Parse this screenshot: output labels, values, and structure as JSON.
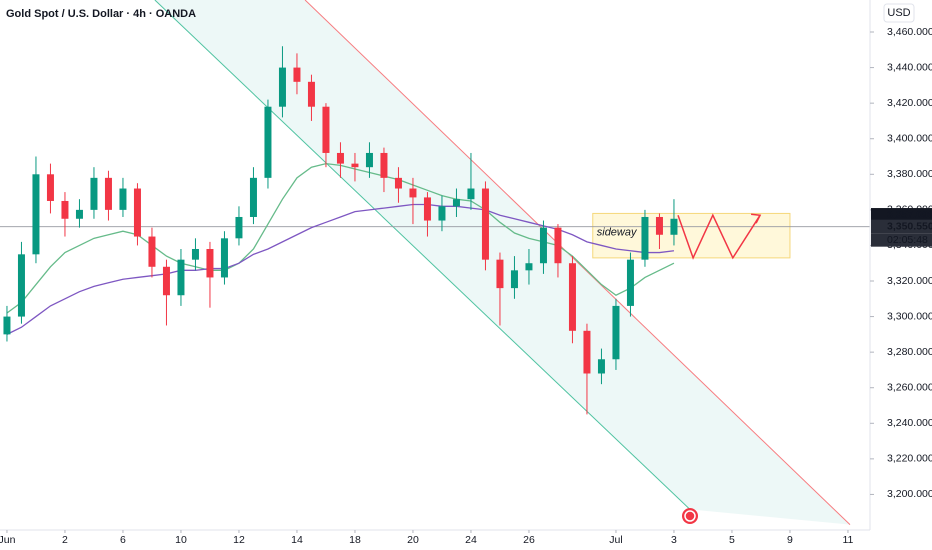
{
  "chart_data": {
    "type": "candlestick",
    "title": "Gold Spot / U.S. Dollar · 4h · OANDA",
    "currency": "USD",
    "xlim": [
      -0.24,
      29.76
    ],
    "xticks": [
      {
        "value": 0,
        "label": "Jun"
      },
      2,
      {
        "value": 4,
        "label": "6"
      },
      {
        "value": 6,
        "label": "10"
      },
      {
        "value": 8,
        "label": "12"
      },
      {
        "value": 10,
        "label": "14"
      },
      {
        "value": 12,
        "label": "18"
      },
      {
        "value": 14,
        "label": "20"
      },
      {
        "value": 16,
        "label": "24"
      },
      {
        "value": 18,
        "label": "26"
      },
      {
        "value": 21,
        "label": "Jul"
      },
      {
        "value": 23,
        "label": "3"
      },
      {
        "value": 25,
        "label": "5"
      },
      {
        "value": 27,
        "label": "9"
      },
      {
        "value": 29,
        "label": "11"
      }
    ],
    "ylim": [
      3180,
      3478
    ],
    "yticks": [
      {
        "value": 3460,
        "label": "3,460.000"
      },
      {
        "value": 3440,
        "label": "3,440.000"
      },
      {
        "value": 3420,
        "label": "3,420.000"
      },
      {
        "value": 3400,
        "label": "3,400.000"
      },
      {
        "value": 3380,
        "label": "3,380.000"
      },
      {
        "value": 3360,
        "label": "3,360.000"
      },
      {
        "value": 3340,
        "label": "3,340.000"
      },
      {
        "value": 3320,
        "label": "3,320.000"
      },
      {
        "value": 3300,
        "label": "3,300.000"
      },
      {
        "value": 3280,
        "label": "3,280.000"
      },
      {
        "value": 3260,
        "label": "3,260.000"
      },
      {
        "value": 3240,
        "label": "3,240.000"
      },
      {
        "value": 3220,
        "label": "3,220.000"
      },
      {
        "value": 3200,
        "label": "3,200.000"
      }
    ],
    "up_color": "#089981",
    "down_color": "#f23645",
    "x": [
      0,
      0.5,
      1,
      1.5,
      2,
      2.5,
      3,
      3.5,
      4,
      4.5,
      5,
      5.5,
      6,
      6.5,
      7,
      7.5,
      8,
      8.5,
      9,
      9.5,
      10,
      10.5,
      11,
      11.5,
      12,
      12.5,
      13,
      13.5,
      14,
      14.5,
      15,
      15.5,
      16,
      16.5,
      17,
      17.5,
      18,
      18.5,
      19,
      19.5,
      20,
      20.5,
      21,
      21.5,
      22,
      22.5,
      23
    ],
    "open": [
      3290,
      3300,
      3335,
      3380,
      3365,
      3355,
      3360,
      3378,
      3360,
      3372,
      3345,
      3328,
      3312,
      3332,
      3338,
      3322,
      3344,
      3356,
      3378,
      3418,
      3440,
      3432,
      3418,
      3392,
      3386,
      3384,
      3392,
      3378,
      3372,
      3367,
      3354,
      3362,
      3366,
      3372,
      3332,
      3316,
      3326,
      3330,
      3350,
      3330,
      3292,
      3268,
      3276,
      3306,
      3332,
      3356,
      3346
    ],
    "high": [
      3306,
      3342,
      3390,
      3386,
      3370,
      3366,
      3384,
      3382,
      3378,
      3375,
      3350,
      3332,
      3338,
      3344,
      3342,
      3348,
      3362,
      3384,
      3422,
      3452,
      3448,
      3436,
      3420,
      3398,
      3392,
      3398,
      3395,
      3384,
      3378,
      3370,
      3368,
      3372,
      3392,
      3376,
      3336,
      3334,
      3338,
      3354,
      3352,
      3334,
      3296,
      3282,
      3310,
      3336,
      3360,
      3358,
      3366
    ],
    "low": [
      3286,
      3296,
      3330,
      3358,
      3345,
      3350,
      3355,
      3354,
      3356,
      3340,
      3322,
      3295,
      3306,
      3326,
      3305,
      3318,
      3340,
      3352,
      3372,
      3412,
      3425,
      3410,
      3384,
      3378,
      3376,
      3378,
      3370,
      3364,
      3352,
      3345,
      3348,
      3356,
      3360,
      3326,
      3295,
      3310,
      3318,
      3324,
      3322,
      3285,
      3245,
      3262,
      3270,
      3300,
      3328,
      3338,
      3340
    ],
    "close": [
      3300,
      3335,
      3380,
      3365,
      3355,
      3360,
      3378,
      3360,
      3372,
      3345,
      3328,
      3312,
      3332,
      3338,
      3322,
      3344,
      3356,
      3378,
      3418,
      3440,
      3432,
      3418,
      3392,
      3386,
      3384,
      3392,
      3378,
      3372,
      3367,
      3354,
      3362,
      3366,
      3372,
      3332,
      3316,
      3326,
      3330,
      3350,
      3330,
      3292,
      3268,
      3276,
      3306,
      3332,
      3356,
      3346,
      3355
    ],
    "series": [
      {
        "color": "#66bb8a",
        "values": [
          3302,
          3308,
          3318,
          3328,
          3336,
          3340,
          3344,
          3346,
          3348,
          3346,
          3340,
          3334,
          3330,
          3328,
          3326,
          3326,
          3330,
          3338,
          3352,
          3366,
          3378,
          3384,
          3386,
          3385,
          3383,
          3381,
          3379,
          3377,
          3374,
          3371,
          3368,
          3366,
          3365,
          3360,
          3353,
          3347,
          3344,
          3342,
          3340,
          3334,
          3326,
          3318,
          3312,
          3316,
          3322,
          3326,
          3330
        ]
      },
      {
        "color": "#7e57c2",
        "values": [
          3290,
          3294,
          3300,
          3306,
          3310,
          3314,
          3317,
          3319,
          3321,
          3322,
          3323,
          3324,
          3326,
          3326,
          3327,
          3327,
          3330,
          3335,
          3338,
          3342,
          3346,
          3350,
          3353,
          3356,
          3359,
          3360,
          3361,
          3362,
          3363,
          3363,
          3362,
          3362,
          3361,
          3360,
          3357,
          3355,
          3353,
          3351,
          3349,
          3346,
          3342,
          3340,
          3338,
          3337,
          3336,
          3336,
          3337
        ]
      }
    ],
    "channel": {
      "upper": [
        [
          10.28,
          3478
        ],
        [
          29.07,
          3183
        ]
      ],
      "lower": [
        [
          5.1,
          3478
        ],
        [
          23.55,
          3191.6
        ]
      ],
      "upper_color": "#f77c80",
      "lower_color": "#4fc3a1"
    },
    "box": {
      "x": [
        20.2,
        27
      ],
      "y": [
        3333,
        3358
      ],
      "label": "sideway"
    },
    "projection": {
      "x": [
        23.14,
        23.66,
        24.34,
        25.03,
        25.97
      ],
      "y": [
        3357,
        3333,
        3357,
        3333,
        3357
      ],
      "color": "#f23645"
    },
    "price_labels": [
      {
        "value": 3357.09,
        "label": "3,357.090"
      },
      {
        "value": 3350.55,
        "label": "3,350.550"
      }
    ],
    "countdown": "02:05:48"
  }
}
